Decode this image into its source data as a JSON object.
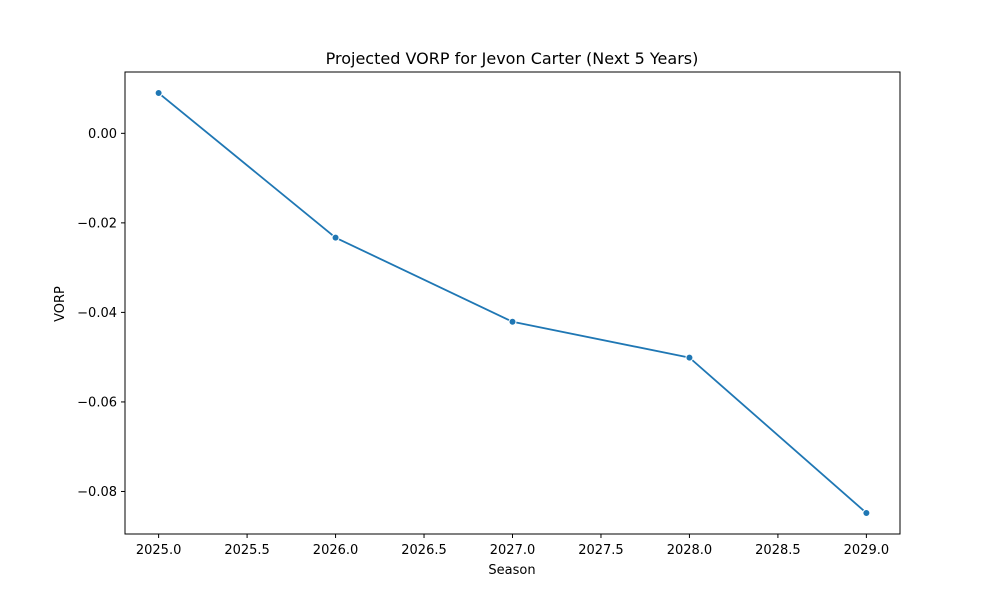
{
  "chart_data": {
    "type": "line",
    "title": "Projected VORP for Jevon Carter (Next 5 Years)",
    "xlabel": "Season",
    "ylabel": "VORP",
    "x": [
      2025.0,
      2026.0,
      2027.0,
      2028.0,
      2029.0
    ],
    "series": [
      {
        "values": [
          0.009,
          -0.0233,
          -0.0421,
          -0.0501,
          -0.0848
        ]
      }
    ],
    "xlim": [
      2024.81,
      2029.19
    ],
    "ylim": [
      -0.0895,
      0.0137
    ],
    "xticks": [
      2025.0,
      2025.5,
      2026.0,
      2026.5,
      2027.0,
      2027.5,
      2028.0,
      2028.5,
      2029.0
    ],
    "xtick_labels": [
      "2025.0",
      "2025.5",
      "2026.0",
      "2026.5",
      "2027.0",
      "2027.5",
      "2028.0",
      "2028.5",
      "2029.0"
    ],
    "yticks": [
      0.0,
      -0.02,
      -0.04,
      -0.06,
      -0.08
    ],
    "ytick_labels": [
      "0.00",
      "−0.02",
      "−0.04",
      "−0.06",
      "−0.08"
    ],
    "grid": false,
    "legend": false,
    "colors": {
      "line": "#1f77b4",
      "marker": "#1f77b4",
      "axes": "#000000",
      "background": "#ffffff"
    },
    "marker": "circle"
  }
}
